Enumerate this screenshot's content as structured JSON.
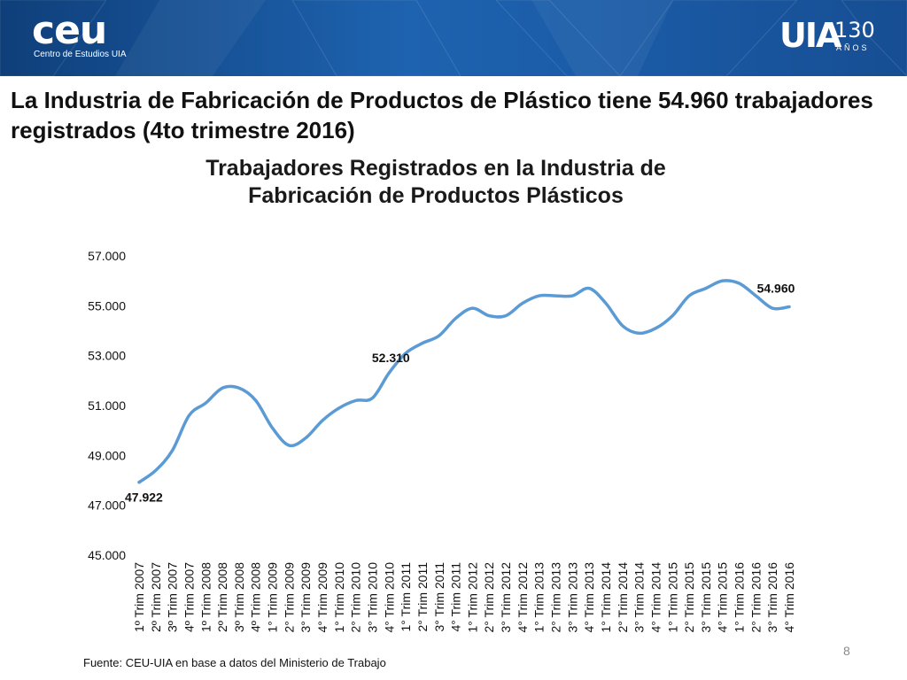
{
  "header": {
    "ceu_logo": "ceu",
    "ceu_logo_sub": "Centro de Estudios UIA",
    "uia_logo": "UIA",
    "uia_anniversary": "130",
    "uia_anniversary_sub": "AÑOS"
  },
  "slide_title": "La Industria de Fabricación de Productos de Plástico tiene 54.960 trabajadores registrados (4to trimestre 2016)",
  "chart_data": {
    "type": "line",
    "title": "Trabajadores Registrados en la Industria de Fabricación de Productos Plásticos",
    "xlabel": "",
    "ylabel": "",
    "ylim": [
      45000,
      57000
    ],
    "yticks": [
      45000,
      47000,
      49000,
      51000,
      53000,
      55000,
      57000
    ],
    "ytick_labels": [
      "45.000",
      "47.000",
      "49.000",
      "51.000",
      "53.000",
      "55.000",
      "57.000"
    ],
    "categories": [
      "1º Trim 2007",
      "2º Trim 2007",
      "3º Trim 2007",
      "4º Trim 2007",
      "1º Trim 2008",
      "2º Trim 2008",
      "3º Trim 2008",
      "4º Trim 2008",
      "1° Trim 2009",
      "2° Trim 2009",
      "3° Trim 2009",
      "4° Trim 2009",
      "1° Trim 2010",
      "2° Trim 2010",
      "3° Trim 2010",
      "4° Trim 2010",
      "1° Trim 2011",
      "2° Trim 2011",
      "3° Trim 2011",
      "4° Trim 2011",
      "1° Trim 2012",
      "2° Trim 2012",
      "3° Trim 2012",
      "4° Trim 2012",
      "1° Trim 2013",
      "2° Trim 2013",
      "3° Trim 2013",
      "4° Trim 2013",
      "1° Trim 2014",
      "2° Trim 2014",
      "3° Trim 2014",
      "4° Trim 2014",
      "1° Trim 2015",
      "2° Trim 2015",
      "3° Trim 2015",
      "4° Trim 2015",
      "1° Trim 2016",
      "2° Trim 2016",
      "3° Trim 2016",
      "4° Trim 2016"
    ],
    "series": [
      {
        "name": "",
        "color": "#5b9bd5",
        "values": [
          47922,
          48400,
          49200,
          50600,
          51100,
          51700,
          51700,
          51200,
          50100,
          49400,
          49700,
          50400,
          50900,
          51200,
          51300,
          52310,
          53100,
          53500,
          53800,
          54500,
          54900,
          54600,
          54600,
          55100,
          55400,
          55400,
          55400,
          55700,
          55100,
          54200,
          53900,
          54100,
          54600,
          55400,
          55700,
          56000,
          55900,
          55400,
          54900,
          54960
        ]
      }
    ],
    "data_labels": [
      {
        "index": 0,
        "text": "47.922"
      },
      {
        "index": 15,
        "text": "52.310"
      },
      {
        "index": 39,
        "text": "54.960"
      }
    ],
    "grid": false,
    "legend": "none"
  },
  "source_note": "Fuente: CEU-UIA en base a datos del Ministerio de Trabajo",
  "page_number": "8"
}
